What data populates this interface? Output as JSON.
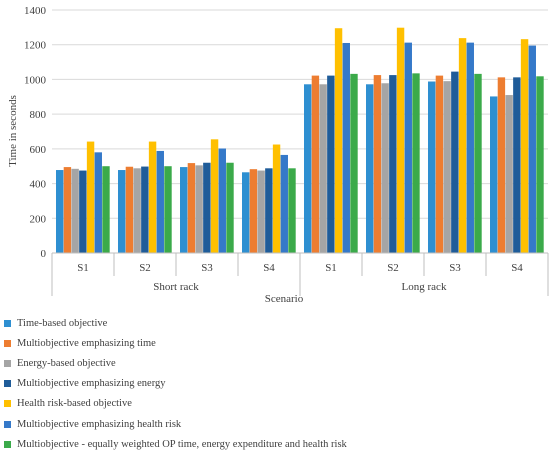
{
  "chart_data": {
    "type": "bar",
    "ylabel": "Time in seconds",
    "xlabel": "Scenario",
    "ylim": [
      0,
      1400
    ],
    "yticks": [
      0,
      200,
      400,
      600,
      800,
      1000,
      1200,
      1400
    ],
    "grid": true,
    "legend_position": "bottom",
    "categories": [
      "S1",
      "S2",
      "S3",
      "S4",
      "S1",
      "S2",
      "S3",
      "S4"
    ],
    "groups": [
      {
        "label": "Short rack",
        "span": 4
      },
      {
        "label": "Long rack",
        "span": 4
      }
    ],
    "series": [
      {
        "name": "Time-based objective",
        "color": "#2E8FD1",
        "values": [
          478,
          478,
          495,
          465,
          972,
          972,
          988,
          902
        ]
      },
      {
        "name": "Multiobjective emphasizing time",
        "color": "#ED7D31",
        "values": [
          495,
          497,
          518,
          483,
          1022,
          1025,
          1022,
          1012
        ]
      },
      {
        "name": "Energy-based objective",
        "color": "#A5A5A5",
        "values": [
          485,
          488,
          505,
          475,
          972,
          978,
          990,
          910
        ]
      },
      {
        "name": "Multiobjective emphasizing energy",
        "color": "#1F5C99",
        "values": [
          475,
          498,
          520,
          488,
          1022,
          1025,
          1045,
          1012
        ]
      },
      {
        "name": "Health risk-based objective",
        "color": "#FFC000",
        "values": [
          642,
          642,
          655,
          625,
          1295,
          1298,
          1238,
          1232
        ]
      },
      {
        "name": "Multiobjective emphasizing health risk",
        "color": "#3579C9",
        "values": [
          580,
          588,
          602,
          565,
          1210,
          1212,
          1212,
          1195
        ]
      },
      {
        "name": "Multiobjective - equally weighted OP time, energy expenditure and health risk",
        "color": "#3BAA4A",
        "values": [
          500,
          500,
          520,
          488,
          1032,
          1035,
          1032,
          1018
        ]
      }
    ]
  }
}
